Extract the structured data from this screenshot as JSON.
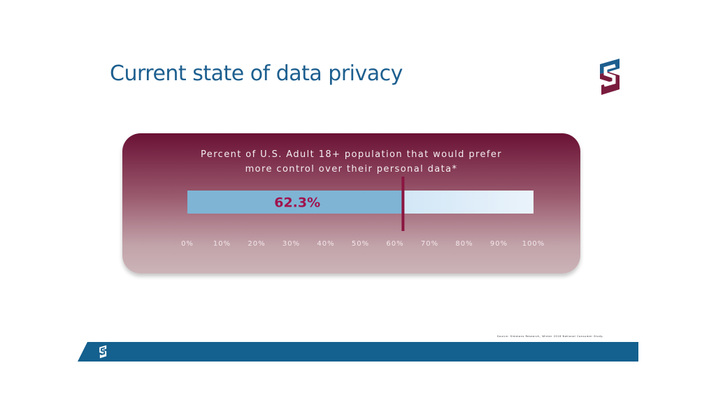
{
  "slide": {
    "title": "Current state of data privacy",
    "source": "Source: Simmons Research, Winter 2018 National Consumer Study."
  },
  "chart_data": {
    "type": "bar",
    "orientation": "horizontal",
    "title_lines": [
      "Percent of U.S. Adult 18+ population that would prefer",
      "more control over their personal data*"
    ],
    "value": 62.3,
    "value_label": "62.3%",
    "xlim": [
      0,
      100
    ],
    "ticks": [
      0,
      10,
      20,
      30,
      40,
      50,
      60,
      70,
      80,
      90,
      100
    ],
    "tick_labels": [
      "0%",
      "10%",
      "20%",
      "30%",
      "40%",
      "50%",
      "60%",
      "70%",
      "80%",
      "90%",
      "100%"
    ],
    "grid": false,
    "colors": {
      "bar_fill": "#7fb4d4",
      "bar_track_start": "#a9d2ee",
      "bar_track_end": "#eaf3fb",
      "marker": "#8a1640",
      "value_text": "#a0134e"
    }
  },
  "brand": {
    "logo_icon": "s-logo-icon",
    "primary": "#1d5f8f",
    "secondary": "#7a1c3e"
  }
}
